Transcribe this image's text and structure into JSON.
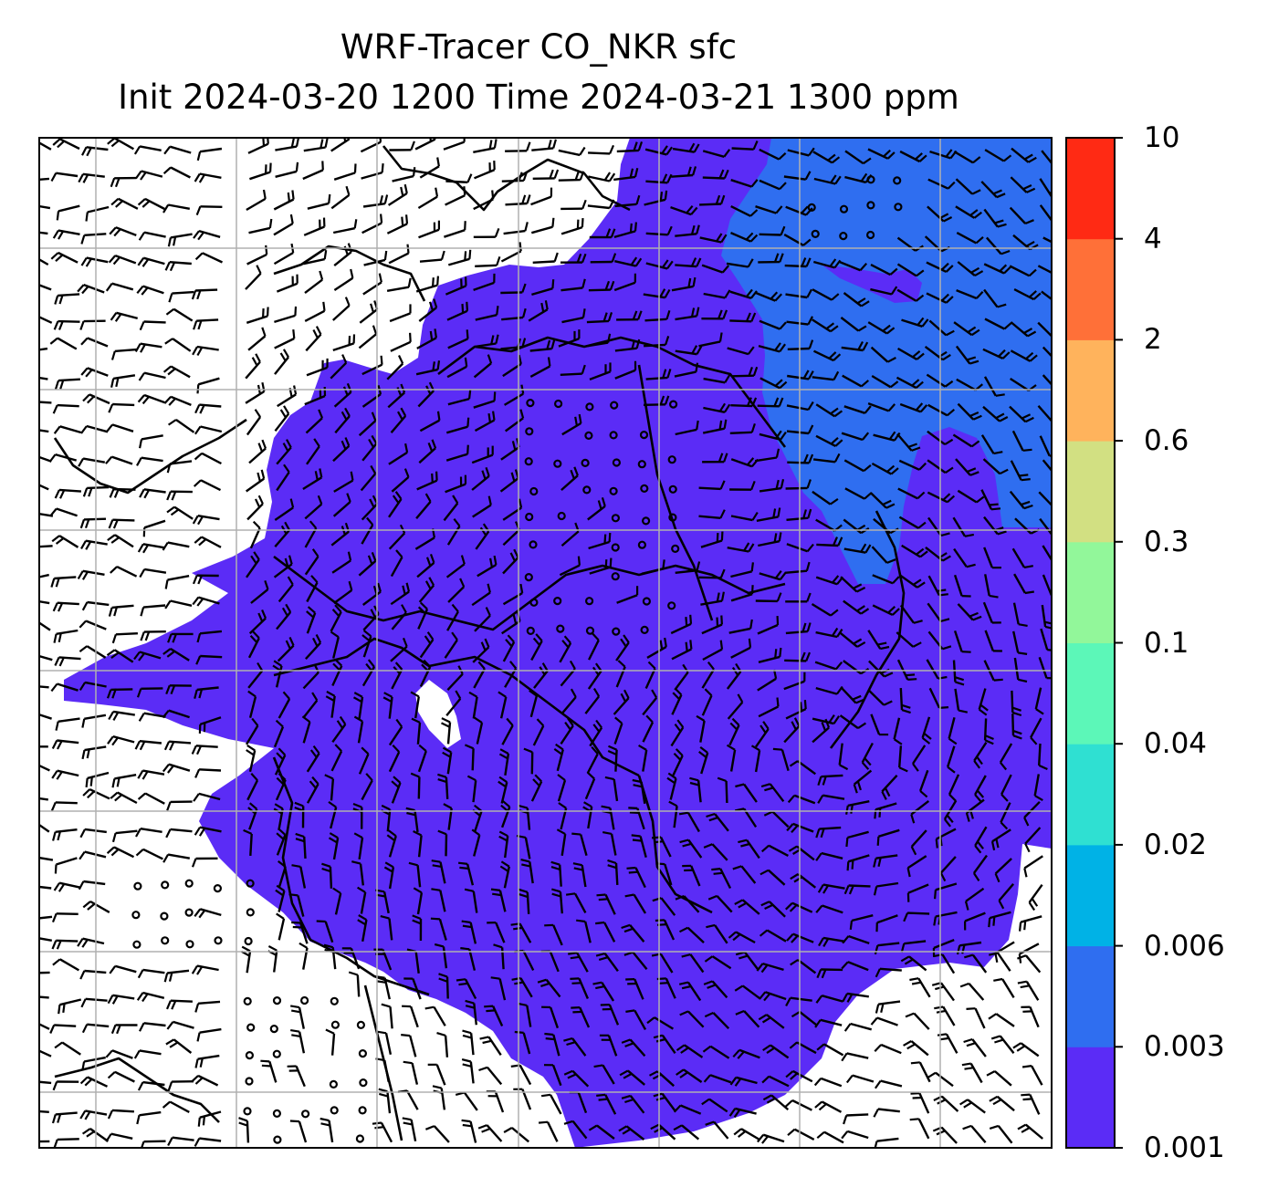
{
  "title": {
    "line1": "WRF-Tracer CO_NKR sfc",
    "line2": "Init 2024-03-20 1200 Time 2024-03-21 1300 ppm"
  },
  "colorbar": {
    "ticks": [
      "10",
      "4",
      "2",
      "0.6",
      "0.3",
      "0.1",
      "0.04",
      "0.02",
      "0.006",
      "0.003",
      "0.001"
    ],
    "colors_bottom_to_top": [
      "#5b2cf6",
      "#2f6ef0",
      "#00b2e6",
      "#2fe0d2",
      "#5cf7b8",
      "#92f79a",
      "#d2e082",
      "#ffb35c",
      "#ff7038",
      "#ff2a14"
    ]
  },
  "map": {
    "plume_color": "#5b2cf6",
    "background_plume_color": "#2f6ef0",
    "gridline_color": "#b0b0b0",
    "grid_on": true
  }
}
